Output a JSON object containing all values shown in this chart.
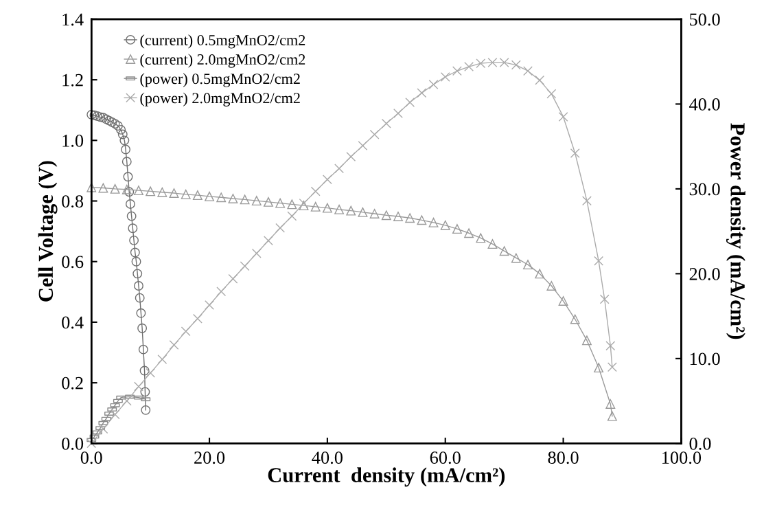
{
  "chart_data": {
    "type": "line",
    "xlabel": "Current  density (mA/cm²)",
    "ylabel": "Cell Voltage (V)",
    "y2label": "Power density (mA/cm²)",
    "xlim": [
      0,
      100
    ],
    "xticks": [
      {
        "value": 0,
        "label": "0.0"
      },
      {
        "value": 20,
        "label": "20.0"
      },
      {
        "value": 40,
        "label": "40.0"
      },
      {
        "value": 60,
        "label": "60.0"
      },
      {
        "value": 80,
        "label": "80.0"
      },
      {
        "value": 100,
        "label": "100.0"
      }
    ],
    "ylim": [
      0,
      1.4
    ],
    "yticks": [
      {
        "value": 0,
        "label": "0.0"
      },
      {
        "value": 0.2,
        "label": "0.2"
      },
      {
        "value": 0.4,
        "label": "0.4"
      },
      {
        "value": 0.6,
        "label": "0.6"
      },
      {
        "value": 0.8,
        "label": "0.8"
      },
      {
        "value": 1.0,
        "label": "1.0"
      },
      {
        "value": 1.2,
        "label": "1.2"
      },
      {
        "value": 1.4,
        "label": "1.4"
      }
    ],
    "y2lim": [
      0,
      50
    ],
    "y2ticks": [
      {
        "value": 0,
        "label": "0.0"
      },
      {
        "value": 10,
        "label": "10.0"
      },
      {
        "value": 20,
        "label": "20.0"
      },
      {
        "value": 30,
        "label": "30.0"
      },
      {
        "value": 40,
        "label": "40.0"
      },
      {
        "value": 50,
        "label": "50.0"
      }
    ],
    "legend": "top left",
    "grid": false,
    "series": [
      {
        "name": "(current) 0.5mgMnO2/cm2",
        "color": "#6e6e6e",
        "marker": "circle",
        "x": [
          0,
          0.5,
          1,
          1.5,
          2,
          2.5,
          3,
          3.5,
          4,
          4.5,
          5,
          5.3,
          5.6,
          5.8,
          6,
          6.2,
          6.4,
          6.6,
          6.8,
          7,
          7.2,
          7.4,
          7.6,
          7.8,
          8,
          8.2,
          8.4,
          8.6,
          8.8,
          9,
          9.1,
          9.2
        ],
        "values": [
          1.085,
          1.083,
          1.08,
          1.077,
          1.075,
          1.07,
          1.065,
          1.06,
          1.055,
          1.048,
          1.035,
          1.02,
          1.0,
          0.97,
          0.93,
          0.88,
          0.83,
          0.79,
          0.75,
          0.71,
          0.67,
          0.63,
          0.6,
          0.56,
          0.52,
          0.48,
          0.43,
          0.38,
          0.31,
          0.24,
          0.17,
          0.11
        ]
      },
      {
        "name": "(current) 2.0mgMnO2/cm2",
        "color": "#9a9a9a",
        "marker": "triangle",
        "x": [
          0,
          2,
          4,
          6,
          8,
          10,
          12,
          14,
          16,
          18,
          20,
          22,
          24,
          26,
          28,
          30,
          32,
          34,
          36,
          38,
          40,
          42,
          44,
          46,
          48,
          50,
          52,
          54,
          56,
          58,
          60,
          62,
          64,
          66,
          68,
          70,
          72,
          74,
          76,
          78,
          80,
          82,
          84,
          86,
          88,
          88.3
        ],
        "values": [
          0.845,
          0.843,
          0.84,
          0.838,
          0.835,
          0.832,
          0.829,
          0.826,
          0.822,
          0.819,
          0.815,
          0.812,
          0.808,
          0.805,
          0.801,
          0.797,
          0.793,
          0.789,
          0.785,
          0.781,
          0.777,
          0.772,
          0.768,
          0.763,
          0.758,
          0.753,
          0.749,
          0.744,
          0.737,
          0.729,
          0.72,
          0.708,
          0.694,
          0.678,
          0.658,
          0.635,
          0.612,
          0.59,
          0.56,
          0.52,
          0.47,
          0.41,
          0.34,
          0.25,
          0.13,
          0.09
        ]
      },
      {
        "name": "(power) 0.5mgMnO2/cm2",
        "color": "#8a8a8a",
        "marker": "square",
        "axis": "y2",
        "x": [
          0,
          0.5,
          1,
          1.5,
          2,
          2.5,
          3,
          3.5,
          4,
          4.5,
          5,
          6.5,
          8,
          9.2
        ],
        "values": [
          0.4,
          0.8,
          1.3,
          1.8,
          2.4,
          2.9,
          3.5,
          4.0,
          4.5,
          5.0,
          5.4,
          5.5,
          5.4,
          5.2
        ]
      },
      {
        "name": "(power) 2.0mgMnO2/cm2",
        "color": "#ababab",
        "marker": "cross",
        "axis": "y2",
        "x": [
          0,
          2,
          4,
          6,
          8,
          10,
          12,
          14,
          16,
          18,
          20,
          22,
          24,
          26,
          28,
          30,
          32,
          34,
          36,
          38,
          40,
          42,
          44,
          46,
          48,
          50,
          52,
          54,
          56,
          58,
          60,
          62,
          64,
          66,
          68,
          70,
          72,
          74,
          76,
          78,
          80,
          82,
          84,
          86,
          87,
          88,
          88.3
        ],
        "values": [
          0,
          1.7,
          3.4,
          5.0,
          6.7,
          8.3,
          9.9,
          11.6,
          13.2,
          14.7,
          16.3,
          17.9,
          19.4,
          20.9,
          22.4,
          23.9,
          25.4,
          26.8,
          28.3,
          29.7,
          31.1,
          32.4,
          33.8,
          35.1,
          36.4,
          37.7,
          38.9,
          40.2,
          41.3,
          42.3,
          43.2,
          43.9,
          44.4,
          44.8,
          44.9,
          44.9,
          44.6,
          43.9,
          42.8,
          41.2,
          38.5,
          34.2,
          28.6,
          21.5,
          17.0,
          11.5,
          9.0
        ]
      }
    ]
  }
}
